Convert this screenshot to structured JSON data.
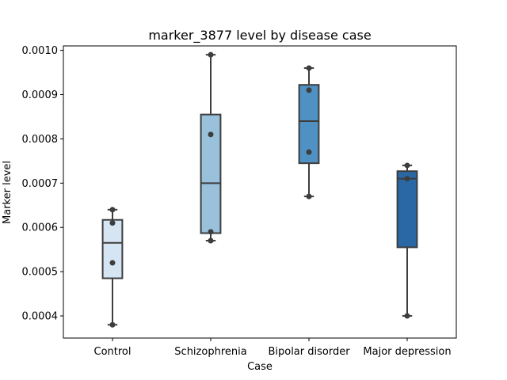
{
  "chart_data": {
    "type": "box",
    "title": "marker_3877 level by disease case",
    "xlabel": "Case",
    "ylabel": "Marker level",
    "ylim": [
      0.00035,
      0.00101
    ],
    "yticks": [
      0.0004,
      0.0005,
      0.0006,
      0.0007,
      0.0008,
      0.0009,
      0.001
    ],
    "ytick_labels": [
      "0.0004",
      "0.0005",
      "0.0006",
      "0.0007",
      "0.0008",
      "0.0009",
      "0.0010"
    ],
    "categories": [
      "Control",
      "Schizophrenia",
      "Bipolar disorder",
      "Major depression"
    ],
    "boxes": [
      {
        "category": "Control",
        "whisker_low": 0.00038,
        "q1": 0.000485,
        "median": 0.000565,
        "q3": 0.000617,
        "whisker_high": 0.00064,
        "points": [
          0.00038,
          0.00052,
          0.00061,
          0.00064
        ],
        "color": "#d6e5f4"
      },
      {
        "category": "Schizophrenia",
        "whisker_low": 0.00057,
        "q1": 0.000587,
        "median": 0.0007,
        "q3": 0.000855,
        "whisker_high": 0.00099,
        "points": [
          0.00057,
          0.00059,
          0.00081,
          0.00099
        ],
        "color": "#99c1dc"
      },
      {
        "category": "Bipolar disorder",
        "whisker_low": 0.00067,
        "q1": 0.000745,
        "median": 0.00084,
        "q3": 0.000922,
        "whisker_high": 0.00096,
        "points": [
          0.00067,
          0.00077,
          0.00091,
          0.00096
        ],
        "color": "#4f91c2"
      },
      {
        "category": "Major depression",
        "whisker_low": 0.0004,
        "q1": 0.000555,
        "median": 0.00071,
        "q3": 0.000727,
        "whisker_high": 0.00074,
        "points": [
          0.0004,
          0.00071,
          0.00074
        ],
        "color": "#2a68a5"
      }
    ],
    "grid": false,
    "legend": "none",
    "colors": {
      "box_edge": "#3d3d3d",
      "point": "#3d3d3d",
      "axis": "#000000"
    }
  }
}
